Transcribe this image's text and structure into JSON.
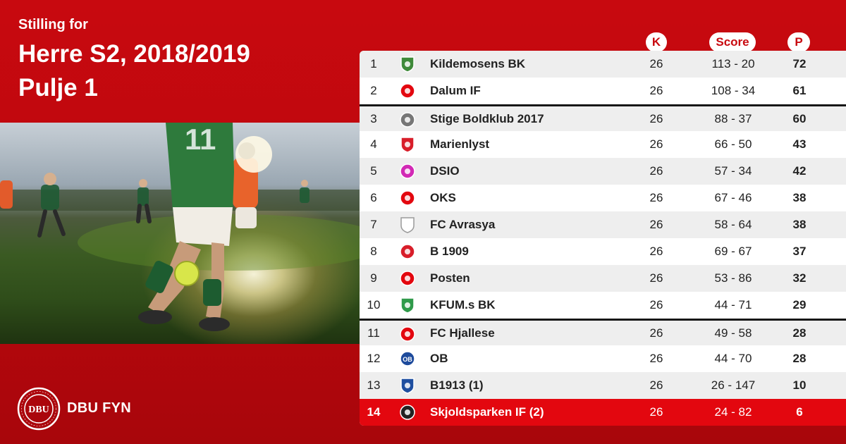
{
  "header": {
    "kicker": "Stilling for",
    "title": "Herre S2, 2018/2019",
    "pool": "Pulje 1"
  },
  "footer": {
    "org_name": "DBU FYN",
    "logo_text": "DBU"
  },
  "columns": {
    "played": "K",
    "score": "Score",
    "points": "P"
  },
  "colors": {
    "brand_red": "#c8090f",
    "relegation_red": "#e3070f",
    "separator": "#161616"
  },
  "standings": [
    {
      "pos": "1",
      "team": "Kildemosens BK",
      "played": "26",
      "score": "113 - 20",
      "points": "72",
      "crest": "kildemosens-crest-icon"
    },
    {
      "pos": "2",
      "team": "Dalum IF",
      "played": "26",
      "score": "108 - 34",
      "points": "61",
      "crest": "dalum-crest-icon"
    },
    {
      "pos": "3",
      "team": "Stige Boldklub 2017",
      "played": "26",
      "score": "88 - 37",
      "points": "60",
      "crest": "stige-crest-icon"
    },
    {
      "pos": "4",
      "team": "Marienlyst",
      "played": "26",
      "score": "66 - 50",
      "points": "43",
      "crest": "marienlyst-crest-icon"
    },
    {
      "pos": "5",
      "team": "DSIO",
      "played": "26",
      "score": "57 - 34",
      "points": "42",
      "crest": "dsio-crest-icon"
    },
    {
      "pos": "6",
      "team": "OKS",
      "played": "26",
      "score": "67 - 46",
      "points": "38",
      "crest": "oks-crest-icon"
    },
    {
      "pos": "7",
      "team": "FC Avrasya",
      "played": "26",
      "score": "58 - 64",
      "points": "38",
      "crest": "fc-avrasya-crest-icon"
    },
    {
      "pos": "8",
      "team": "B 1909",
      "played": "26",
      "score": "69 - 67",
      "points": "37",
      "crest": "b1909-crest-icon"
    },
    {
      "pos": "9",
      "team": "Posten",
      "played": "26",
      "score": "53 - 86",
      "points": "32",
      "crest": "posten-crest-icon"
    },
    {
      "pos": "10",
      "team": "KFUM.s BK",
      "played": "26",
      "score": "44 - 71",
      "points": "29",
      "crest": "kfum-crest-icon"
    },
    {
      "pos": "11",
      "team": "FC Hjallese",
      "played": "26",
      "score": "49 - 58",
      "points": "28",
      "crest": "fc-hjallese-crest-icon"
    },
    {
      "pos": "12",
      "team": "OB",
      "played": "26",
      "score": "44 - 70",
      "points": "28",
      "crest": "ob-crest-icon",
      "crest_text": "OB"
    },
    {
      "pos": "13",
      "team": "B1913 (1)",
      "played": "26",
      "score": "26 - 147",
      "points": "10",
      "crest": "b1913-crest-icon"
    },
    {
      "pos": "14",
      "team": "Skjoldsparken IF (2)",
      "played": "26",
      "score": "24 - 82",
      "points": "6",
      "crest": "skjoldsparken-crest-icon"
    }
  ]
}
